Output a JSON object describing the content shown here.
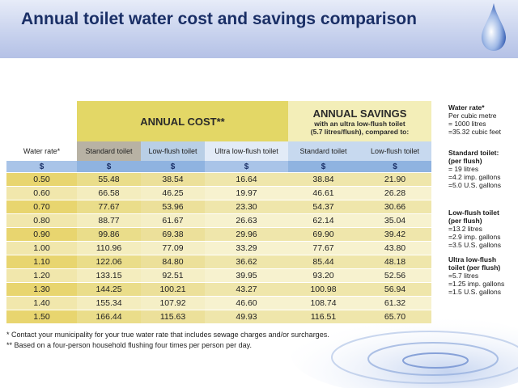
{
  "title": "Annual toilet water cost and savings comparison",
  "headers": {
    "annual_cost": "ANNUAL COST**",
    "annual_savings": "ANNUAL SAVINGS",
    "savings_sub": "with an ultra low-flush toilet",
    "savings_sub2": "(5.7 litres/flush), compared to:"
  },
  "columns": [
    "Water rate*",
    "Standard toilet",
    "Low-flush toilet",
    "Ultra low-flush toilet",
    "Standard toilet",
    "Low-flush toilet"
  ],
  "currency": "$",
  "rows": [
    [
      "0.50",
      "55.48",
      "38.54",
      "16.64",
      "38.84",
      "21.90"
    ],
    [
      "0.60",
      "66.58",
      "46.25",
      "19.97",
      "46.61",
      "26.28"
    ],
    [
      "0.70",
      "77.67",
      "53.96",
      "23.30",
      "54.37",
      "30.66"
    ],
    [
      "0.80",
      "88.77",
      "61.67",
      "26.63",
      "62.14",
      "35.04"
    ],
    [
      "0.90",
      "99.86",
      "69.38",
      "29.96",
      "69.90",
      "39.42"
    ],
    [
      "1.00",
      "110.96",
      "77.09",
      "33.29",
      "77.67",
      "43.80"
    ],
    [
      "1.10",
      "122.06",
      "84.80",
      "36.62",
      "85.44",
      "48.18"
    ],
    [
      "1.20",
      "133.15",
      "92.51",
      "39.95",
      "93.20",
      "52.56"
    ],
    [
      "1.30",
      "144.25",
      "100.21",
      "43.27",
      "100.98",
      "56.94"
    ],
    [
      "1.40",
      "155.34",
      "107.92",
      "46.60",
      "108.74",
      "61.32"
    ],
    [
      "1.50",
      "166.44",
      "115.63",
      "49.93",
      "116.51",
      "65.70"
    ]
  ],
  "side_notes": {
    "water_rate": {
      "heading": "Water rate*",
      "lines": [
        "Per cubic metre",
        "= 1000 litres",
        "=35.32 cubic feet"
      ]
    },
    "standard": {
      "heading": "Standard toilet:",
      "heading2": "(per flush)",
      "lines": [
        "= 19 litres",
        "=4.2 imp. gallons",
        "=5.0 U.S. gallons"
      ]
    },
    "low_flush": {
      "heading": "Low-flush toilet",
      "heading2": "(per flush)",
      "lines": [
        "=13.2 litres",
        "=2.9 imp. gallons",
        "=3.5 U.S. gallons"
      ]
    },
    "ultra": {
      "heading": "Ultra low-flush",
      "heading2": "toilet (per flush)",
      "lines": [
        "=5.7 litres",
        "=1.25 imp. gallons",
        "=1.5 U.S. gallons"
      ]
    }
  },
  "footnotes": [
    "* Contact your municipality for your true water rate that includes sewage charges and/or surcharges.",
    "** Based on a four-person household flushing four times per person per day."
  ],
  "colors": {
    "title": "#1a2f66",
    "cost_header": "#e3d766",
    "savings_header": "#f3eeb8",
    "dollar_row": "#8fb3e0"
  }
}
